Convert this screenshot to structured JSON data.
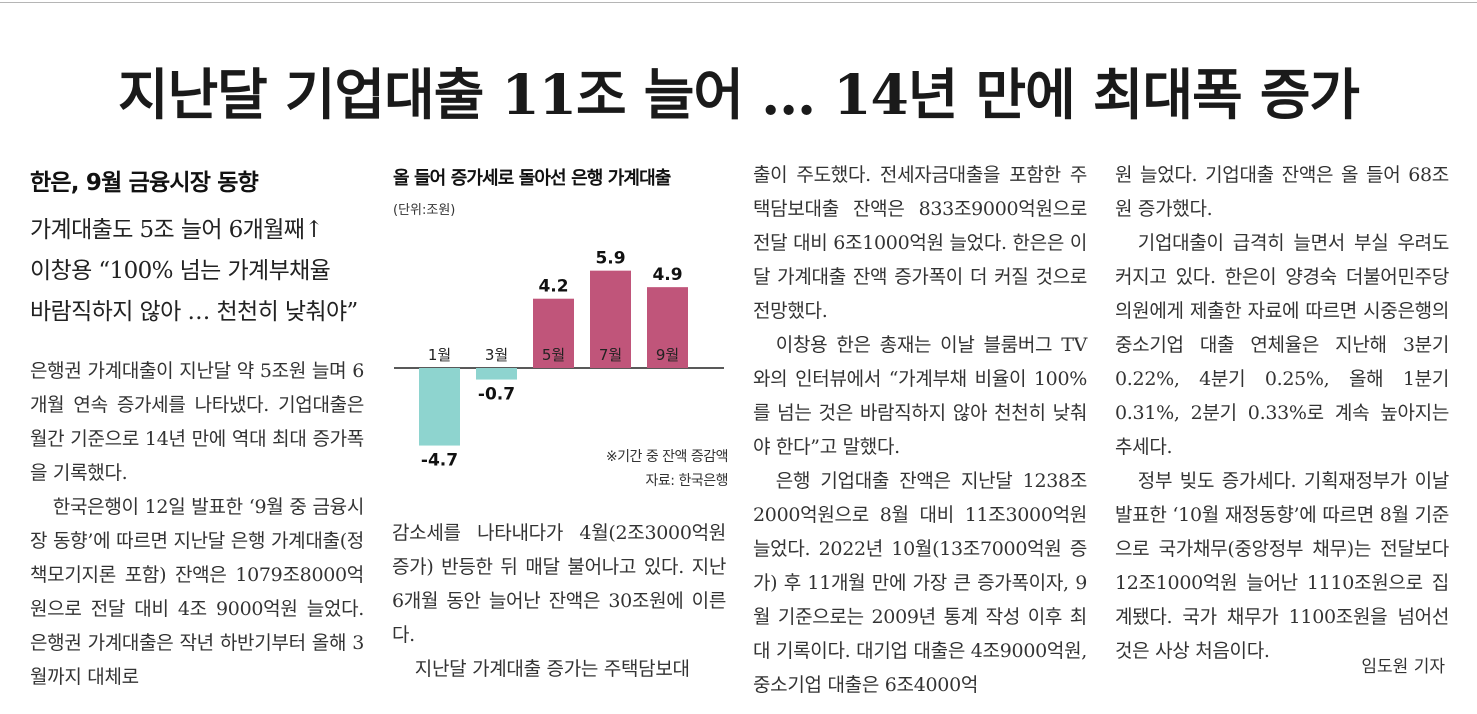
{
  "headline": "지난달 기업대출 11조 늘어 … 14년 만에 최대폭 증가",
  "subtitle": {
    "section": "한은, 9월 금융시장 동향",
    "lines": [
      "가계대출도 5조 늘어 6개월째↑",
      "이창용 “100% 넘는 가계부채율",
      "바람직하지 않아 … 천천히 낮춰야”"
    ]
  },
  "body": {
    "col1": [
      "은행권 가계대출이 지난달 약 5조원 늘며 6개월 연속 증가세를 나타냈다. 기업대출은 월간 기준으로 14년 만에 역대 최대 증가폭을 기록했다.",
      "한국은행이 12일 발표한 ‘9월 중 금융시장 동향’에 따르면 지난달 은행 가계대출(정책모기지론 포함) 잔액은 1079조8000억원으로 전달 대비 4조 9000억원 늘었다. 은행권 가계대출은 작년 하반기부터 올해 3월까지 대체로"
    ],
    "col2": [
      "감소세를 나타내다가 4월(2조3000억원 증가) 반등한 뒤 매달 불어나고 있다. 지난 6개월 동안 늘어난 잔액은 30조원에 이른다.",
      "지난달 가계대출 증가는 주택담보대"
    ],
    "col3": [
      "출이 주도했다. 전세자금대출을 포함한 주택담보대출 잔액은 833조9000억원으로 전달 대비 6조1000억원 늘었다. 한은은 이달 가계대출 잔액 증가폭이 더 커질 것으로 전망했다.",
      "이창용 한은 총재는 이날 블룸버그 TV와의 인터뷰에서 “가계부채 비율이 100%를 넘는 것은 바람직하지 않아 천천히 낮춰야 한다”고 말했다.",
      "은행 기업대출 잔액은 지난달 1238조2000억원으로 8월 대비 11조3000억원 늘었다. 2022년 10월(13조7000억원 증가) 후 11개월 만에 가장 큰 증가폭이자, 9월 기준으로는 2009년 통계 작성 이후 최대 기록이다. 대기업 대출은 4조9000억원, 중소기업 대출은 6조4000억"
    ],
    "col4": [
      "원 늘었다. 기업대출 잔액은 올 들어 68조원 증가했다.",
      "기업대출이 급격히 늘면서 부실 우려도 커지고 있다. 한은이 양경숙 더불어민주당 의원에게 제출한 자료에 따르면 시중은행의 중소기업 대출 연체율은 지난해 3분기 0.22%, 4분기 0.25%, 올해 1분기 0.31%, 2분기 0.33%로 계속 높아지는 추세다.",
      "정부 빚도 증가세다. 기획재정부가 이날 발표한 ‘10월 재정동향’에 따르면 8월 기준으로 국가채무(중앙정부 채무)는 전달보다 12조1000억원 늘어난 1110조원으로 집계됐다. 국가 채무가 1100조원을 넘어선 것은 사상 처음이다."
    ]
  },
  "byline": "임도원 기자",
  "chart": {
    "title": "올 들어 증가세로 돌아선 은행 가계대출",
    "unit": "(단위:조원)",
    "note": "※기간 중 잔액 증감액",
    "source": "자료: 한국은행"
  },
  "chart_data": {
    "type": "bar",
    "title": "올 들어 증가세로 돌아선 은행 가계대출",
    "unit": "조원",
    "categories": [
      "1월",
      "3월",
      "5월",
      "7월",
      "9월"
    ],
    "values": [
      -4.7,
      -0.7,
      4.2,
      5.9,
      4.9
    ],
    "value_labels": [
      "-4.7",
      "-0.7",
      "4.2",
      "5.9",
      "4.9"
    ],
    "colors": {
      "positive": "#c0557a",
      "negative": "#8ed4cf",
      "axis": "#222222"
    },
    "ylim": [
      -4.7,
      5.9
    ],
    "grid": false,
    "legend": "none"
  }
}
